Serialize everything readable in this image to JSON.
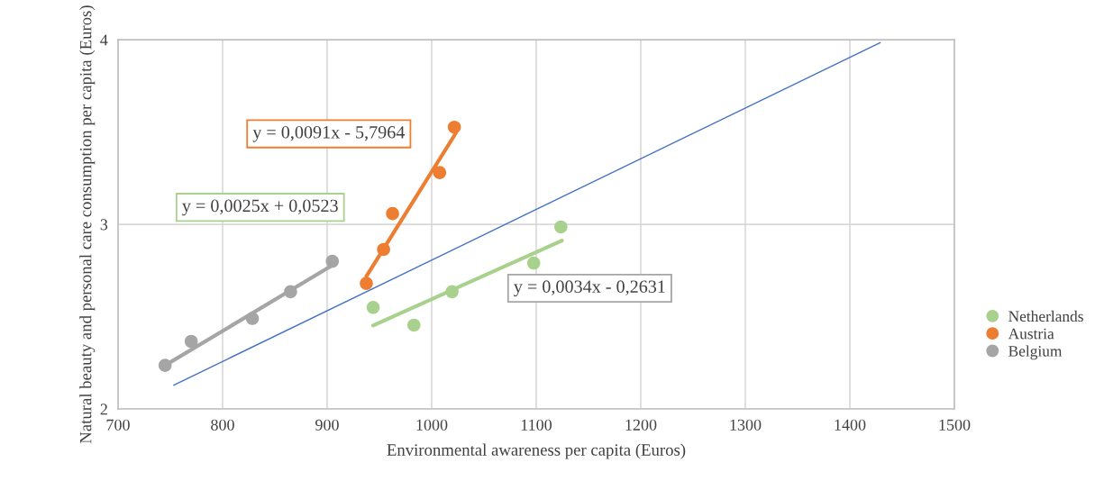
{
  "chart_data": {
    "type": "scatter",
    "xlabel": "Environmental awareness per capita (Euros)",
    "ylabel": "Natural beauty and personal care consumption per capita (Euros)",
    "xlim": [
      700,
      1500
    ],
    "xticks": [
      700,
      800,
      900,
      1000,
      1100,
      1200,
      1300,
      1400,
      1500
    ],
    "ylim": [
      2,
      4
    ],
    "yticks": [
      2,
      3,
      4
    ],
    "grid": true,
    "legend": "right",
    "series": [
      {
        "name": "Netherlands",
        "marker": "circle",
        "color": "#a9d18e",
        "x": [
          944,
          983,
          1019.5,
          1097.6,
          1123.6
        ],
        "values": [
          2.55,
          2.454,
          2.635,
          2.79,
          2.986
        ]
      },
      {
        "name": "Austria",
        "marker": "circle",
        "color": "#ed7d31",
        "x": [
          937.5,
          954,
          962.6,
          1007.6,
          1021.7
        ],
        "values": [
          2.68,
          2.864,
          3.058,
          3.28,
          3.526
        ]
      },
      {
        "name": "Belgium",
        "marker": "circle",
        "color": "#a5a5a5",
        "x": [
          745,
          770,
          828.5,
          865,
          905
        ],
        "values": [
          2.236,
          2.366,
          2.49,
          2.635,
          2.8
        ]
      },
      {
        "type": "line",
        "color": "#a9d18e",
        "x": [
          944,
          1124.6
        ],
        "values": [
          2.452,
          2.912
        ]
      },
      {
        "type": "line",
        "color": "#ed7d31",
        "x": [
          937.5,
          1023
        ],
        "values": [
          2.718,
          3.493
        ]
      },
      {
        "type": "line",
        "color": "#a5a5a5",
        "x": [
          745,
          905
        ],
        "values": [
          2.236,
          2.778
        ]
      },
      {
        "type": "line",
        "color": "#4472c4",
        "x": [
          753.3,
          1429
        ],
        "values": [
          2.129,
          3.984
        ]
      }
    ],
    "annotations": [
      "y = 0,0091x - 5,7964",
      "y = 0,0025x + 0,0523",
      "y = 0,0034x - 0,2631"
    ]
  }
}
